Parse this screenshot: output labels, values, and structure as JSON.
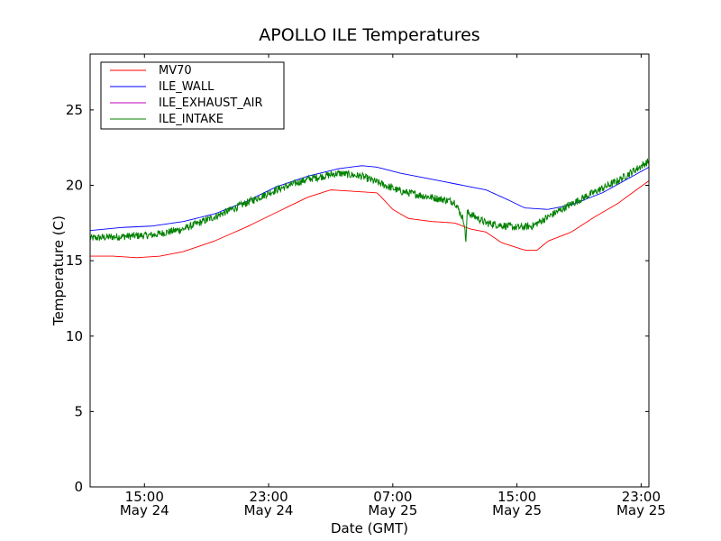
{
  "chart_data": {
    "type": "line",
    "title": "APOLLO ILE Temperatures",
    "xlabel": "Date (GMT)",
    "ylabel": "Temperature (C)",
    "x_unit": "hours since May 24 11:30 GMT",
    "xlim": [
      0,
      36
    ],
    "ylim": [
      0,
      28.7
    ],
    "grid": false,
    "legend_position": "top-left",
    "x_ticks": [
      {
        "hour": 3.5,
        "time": "15:00",
        "date": "May 24"
      },
      {
        "hour": 11.5,
        "time": "23:00",
        "date": "May 24"
      },
      {
        "hour": 19.5,
        "time": "07:00",
        "date": "May 25"
      },
      {
        "hour": 27.5,
        "time": "15:00",
        "date": "May 25"
      },
      {
        "hour": 35.5,
        "time": "23:00",
        "date": "May 25"
      }
    ],
    "y_ticks": [
      0,
      5,
      10,
      15,
      20,
      25
    ],
    "series": [
      {
        "name": "MV70",
        "color": "#ff0000",
        "noise": 0,
        "x": [
          0,
          1.5,
          3,
          4.5,
          6,
          8,
          10,
          12,
          14,
          15.5,
          17,
          18.5,
          19.5,
          20.5,
          22,
          23.5,
          24.5,
          25,
          25.5,
          26.5,
          28,
          28.8,
          29.5,
          31,
          32.5,
          34,
          36
        ],
        "y": [
          15.3,
          15.3,
          15.2,
          15.3,
          15.6,
          16.3,
          17.2,
          18.2,
          19.2,
          19.7,
          19.6,
          19.5,
          18.4,
          17.8,
          17.6,
          17.5,
          17.1,
          17.0,
          16.9,
          16.2,
          15.7,
          15.7,
          16.3,
          16.9,
          17.9,
          18.8,
          20.3
        ]
      },
      {
        "name": "ILE_WALL",
        "color": "#0000ff",
        "noise": 0,
        "x": [
          0,
          2,
          4,
          6,
          8,
          10,
          12,
          14,
          16,
          17.5,
          18.5,
          20,
          22,
          24,
          25.5,
          27,
          28,
          29.5,
          31,
          33,
          36
        ],
        "y": [
          17.0,
          17.2,
          17.3,
          17.6,
          18.1,
          18.9,
          19.9,
          20.6,
          21.1,
          21.3,
          21.2,
          20.8,
          20.4,
          20.0,
          19.7,
          19.0,
          18.5,
          18.4,
          18.7,
          19.5,
          21.2
        ]
      },
      {
        "name": "ILE_EXHAUST_AIR",
        "color": "#bf00bf",
        "noise": 0,
        "x": [],
        "y": []
      },
      {
        "name": "ILE_INTAKE",
        "color": "#008000",
        "noise": 0.25,
        "x": [
          0,
          2,
          4,
          6,
          8,
          10,
          12,
          14,
          16,
          17.5,
          18,
          20,
          22,
          23.5,
          24.1,
          24.2,
          24.3,
          24.5,
          25.5,
          27.5,
          28.5,
          30,
          32,
          34,
          36
        ],
        "y": [
          16.5,
          16.6,
          16.7,
          17.1,
          17.9,
          18.8,
          19.7,
          20.4,
          20.8,
          20.6,
          20.4,
          19.6,
          19.2,
          18.9,
          17.6,
          16.2,
          18.2,
          18.1,
          17.5,
          17.2,
          17.3,
          18.2,
          19.3,
          20.3,
          21.6
        ]
      }
    ]
  }
}
